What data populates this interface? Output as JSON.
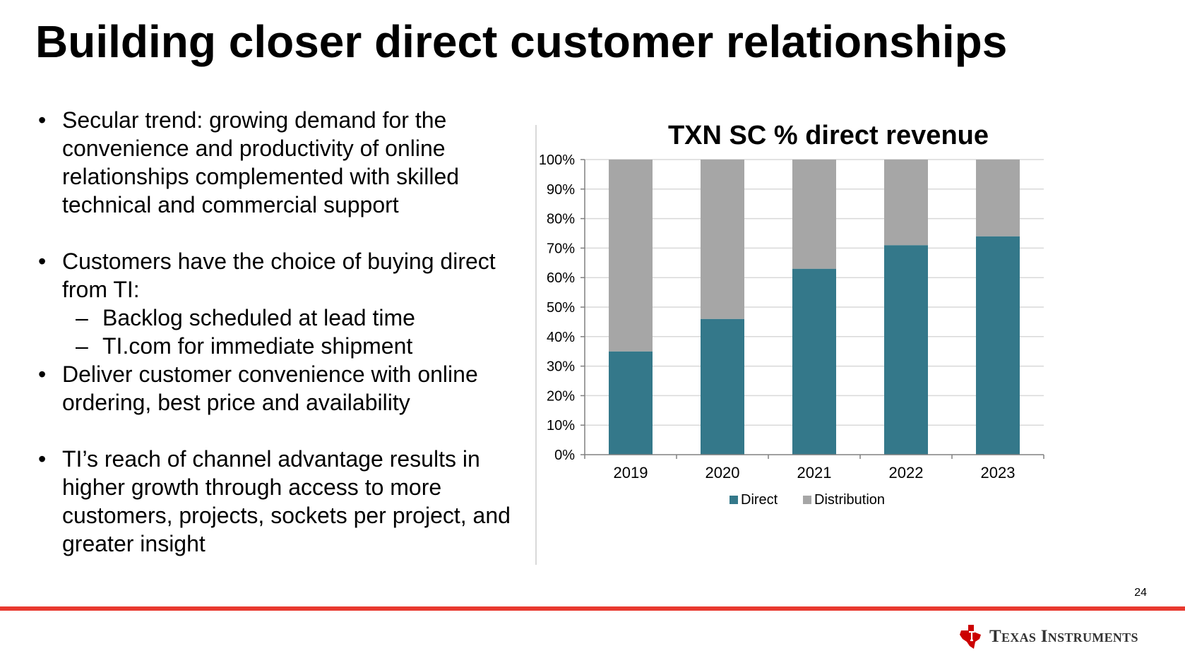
{
  "slide": {
    "title": "Building closer direct customer relationships",
    "page_number": "24"
  },
  "bullets": [
    {
      "text": "Secular trend: growing demand for the convenience and productivity of online relationships complemented with skilled technical and commercial support",
      "subitems": []
    },
    {
      "text": "Customers have the choice of buying direct from TI:",
      "subitems": [
        "Backlog scheduled at lead time",
        "TI.com for immediate shipment"
      ]
    },
    {
      "text": "Deliver customer convenience with online ordering, best price and availability",
      "subitems": []
    },
    {
      "text": "TI’s reach of channel advantage results in higher growth through access to more customers, projects, sockets per project, and greater insight",
      "subitems": []
    }
  ],
  "bullet_glyph": "•",
  "sub_glyph": "–",
  "chart_data": {
    "type": "bar",
    "stacked": true,
    "title": "TXN SC % direct revenue",
    "categories": [
      "2019",
      "2020",
      "2021",
      "2022",
      "2023"
    ],
    "series": [
      {
        "name": "Direct",
        "values": [
          35,
          46,
          63,
          71,
          74
        ],
        "color": "#34788a"
      },
      {
        "name": "Distribution",
        "values": [
          65,
          54,
          37,
          29,
          26
        ],
        "color": "#a6a6a6"
      }
    ],
    "ylim": [
      0,
      100
    ],
    "yticks": [
      "0%",
      "10%",
      "20%",
      "30%",
      "40%",
      "50%",
      "60%",
      "70%",
      "80%",
      "90%",
      "100%"
    ],
    "grid": true,
    "legend": "bottom"
  },
  "brand": {
    "logo_text": "Texas Instruments",
    "accent": "#e8392f",
    "logo_color": "#cc0000"
  }
}
